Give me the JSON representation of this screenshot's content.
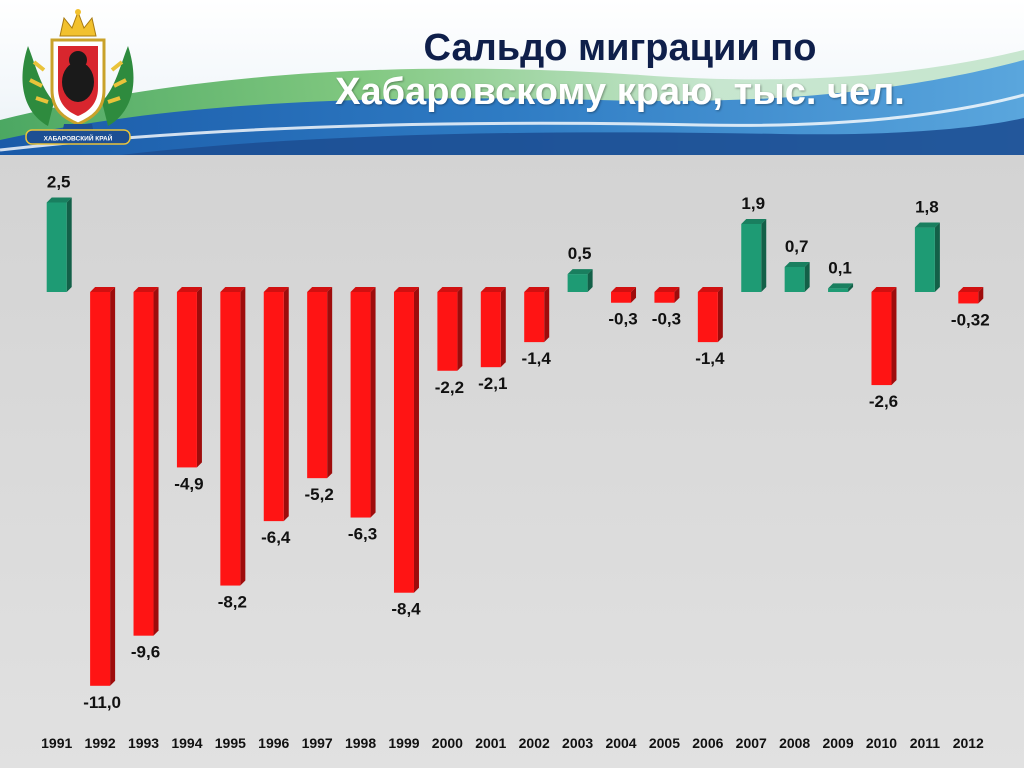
{
  "title": {
    "line1": "Сальдо миграции по",
    "line2": "Хабаровскому краю, тыс. чел."
  },
  "emblem": {
    "caption": "ХАБАРОВСКИЙ КРАЙ"
  },
  "colors": {
    "positive": "#1e9b74",
    "negative": "#ff1414",
    "title": "#0f1f4a"
  },
  "chart_data": {
    "type": "bar",
    "categories": [
      "1991",
      "1992",
      "1993",
      "1994",
      "1995",
      "1996",
      "1997",
      "1998",
      "1999",
      "2000",
      "2001",
      "2002",
      "2003",
      "2004",
      "2005",
      "2006",
      "2007",
      "2008",
      "2009",
      "2010",
      "2011",
      "2012"
    ],
    "values": [
      2.5,
      -11.0,
      -9.6,
      -4.9,
      -8.2,
      -6.4,
      -5.2,
      -6.3,
      -8.4,
      -2.2,
      -2.1,
      -1.4,
      0.5,
      -0.3,
      -0.3,
      -1.4,
      1.9,
      0.7,
      0.1,
      -2.6,
      1.8,
      -0.32
    ],
    "data_labels": [
      "2,5",
      "-11,0",
      "-9,6",
      "-4,9",
      "-8,2",
      "-6,4",
      "-5,2",
      "-6,3",
      "-8,4",
      "-2,2",
      "-2,1",
      "-1,4",
      "0,5",
      "-0,3",
      "-0,3",
      "-1,4",
      "1,9",
      "0,7",
      "0,1",
      "-2,6",
      "1,8",
      "-0,32"
    ],
    "title": "Сальдо миграции по Хабаровскому краю, тыс. чел.",
    "xlabel": "",
    "ylabel": "",
    "ylim": [
      -11,
      2.5
    ],
    "grid": false,
    "legend": "none"
  }
}
